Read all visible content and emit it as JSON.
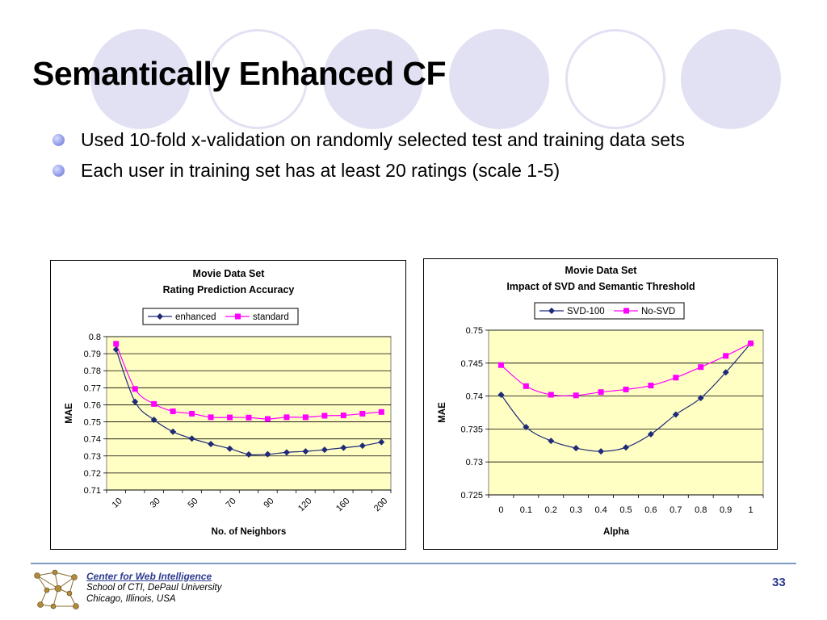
{
  "slide": {
    "title": "Semantically Enhanced CF",
    "bullets": [
      "Used 10-fold x-validation on randomly selected test and training data sets",
      "Each user in training set has at least 20 ratings (scale 1-5)"
    ],
    "footer": {
      "org_name": "Center for Web Intelligence",
      "org_line2": "School of CTI, DePaul University",
      "org_line3": "Chicago, Illinois, USA",
      "page_number": "33"
    }
  },
  "colors": {
    "plot_area": "#ffffc4",
    "series_1": "#1f2a78",
    "series_2": "#ff00ff",
    "title_text": "#000000",
    "footer_accent": "#2b3a8f",
    "deco_circle": "#e1e1f3"
  },
  "chart_data": [
    {
      "type": "line",
      "title": "Movie Data Set",
      "subtitle": "Rating Prediction Accuracy",
      "xlabel": "No. of Neighbors",
      "ylabel": "MAE",
      "ylim": [
        0.71,
        0.8
      ],
      "y_ticks": [
        "0.8",
        "0.79",
        "0.78",
        "0.77",
        "0.76",
        "0.75",
        "0.74",
        "0.73",
        "0.72",
        "0.71"
      ],
      "x_tick_labels": [
        "10",
        "30",
        "50",
        "70",
        "90",
        "120",
        "160",
        "200"
      ],
      "x": [
        10,
        20,
        30,
        40,
        50,
        60,
        70,
        80,
        90,
        100,
        120,
        140,
        160,
        180,
        200
      ],
      "legend_position": "top",
      "grid": true,
      "series": [
        {
          "name": "enhanced",
          "values": [
            0.7925,
            0.7618,
            0.7512,
            0.7442,
            0.7402,
            0.737,
            0.7343,
            0.7309,
            0.731,
            0.7321,
            0.7327,
            0.7336,
            0.7348,
            0.736,
            0.7381
          ]
        },
        {
          "name": "standard",
          "values": [
            0.7958,
            0.7693,
            0.7605,
            0.7562,
            0.7548,
            0.7527,
            0.7526,
            0.7525,
            0.7517,
            0.7527,
            0.7527,
            0.7536,
            0.7538,
            0.7548,
            0.7558
          ]
        }
      ]
    },
    {
      "type": "line",
      "title": "Movie Data Set",
      "subtitle": "Impact of SVD and Semantic Threshold",
      "xlabel": "Alpha",
      "ylabel": "MAE",
      "ylim": [
        0.725,
        0.75
      ],
      "y_ticks": [
        "0.75",
        "0.745",
        "0.74",
        "0.735",
        "0.73",
        "0.725"
      ],
      "categories": [
        "0",
        "0.1",
        "0.2",
        "0.3",
        "0.4",
        "0.5",
        "0.6",
        "0.7",
        "0.8",
        "0.9",
        "1"
      ],
      "legend_position": "top",
      "grid": true,
      "series": [
        {
          "name": "SVD-100",
          "values": [
            0.7402,
            0.7353,
            0.7332,
            0.7321,
            0.7316,
            0.7322,
            0.7342,
            0.7372,
            0.7397,
            0.7436,
            0.748
          ]
        },
        {
          "name": "No-SVD",
          "values": [
            0.7447,
            0.7415,
            0.7402,
            0.7401,
            0.7406,
            0.741,
            0.7416,
            0.7428,
            0.7444,
            0.7461,
            0.748
          ]
        }
      ]
    }
  ]
}
